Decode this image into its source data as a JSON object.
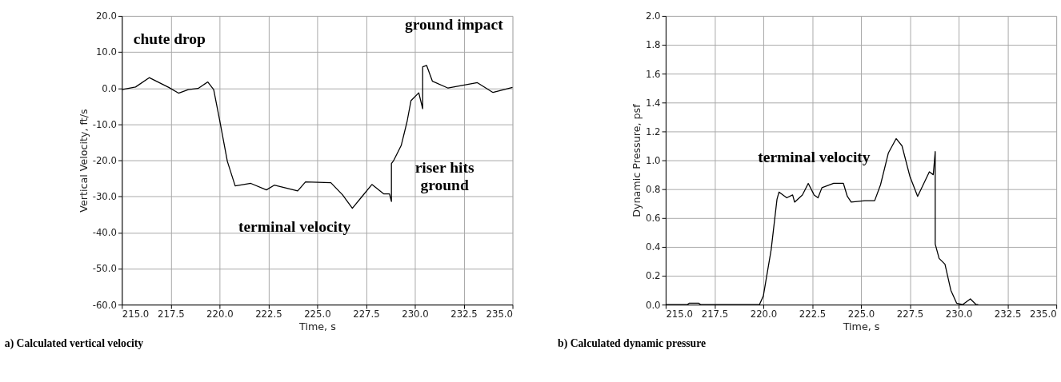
{
  "chart_data": [
    {
      "type": "line",
      "xlabel": "Time, s",
      "ylabel": "Vertical Velocity, ft/s",
      "grid": true,
      "xlim": [
        215,
        235
      ],
      "xticks": [
        {
          "value": 215,
          "label": "215.0"
        },
        {
          "value": 217.5,
          "label": "217.5"
        },
        {
          "value": 220,
          "label": "220.0"
        },
        {
          "value": 222.5,
          "label": "222.5"
        },
        {
          "value": 225,
          "label": "225.0"
        },
        {
          "value": 227.5,
          "label": "227.5"
        },
        {
          "value": 230,
          "label": "230.0"
        },
        {
          "value": 232.5,
          "label": "232.5"
        },
        {
          "value": 235,
          "label": "235.0"
        }
      ],
      "ylim": [
        -60,
        20
      ],
      "yticks": [
        {
          "value": -60,
          "label": "-60.0"
        },
        {
          "value": -50,
          "label": "-50.0"
        },
        {
          "value": -40,
          "label": "-40.0"
        },
        {
          "value": -30,
          "label": "-30.0"
        },
        {
          "value": -20,
          "label": "-20.0"
        },
        {
          "value": -10,
          "label": "-10.0"
        },
        {
          "value": 0,
          "label": "0.0"
        },
        {
          "value": 10,
          "label": "10.0"
        },
        {
          "value": 20,
          "label": "20.0"
        }
      ],
      "x": [
        215.0,
        215.7,
        216.4,
        217.4,
        217.9,
        218.4,
        218.9,
        219.4,
        219.7,
        220.0,
        220.4,
        220.5,
        220.8,
        221.6,
        222.4,
        222.8,
        224.0,
        224.4,
        225.7,
        226.3,
        226.8,
        227.3,
        227.8,
        228.4,
        228.7,
        228.8,
        228.8,
        228.9,
        229.3,
        229.6,
        229.8,
        230.2,
        230.4,
        230.4,
        230.6,
        230.9,
        231.7,
        233.2,
        234.0,
        235.0
      ],
      "series": [
        {
          "color": "#000000",
          "values": [
            -0.4,
            0.3,
            2.9,
            0.2,
            -1.4,
            -0.4,
            -0.1,
            1.7,
            -0.4,
            -8.7,
            -20.3,
            -22.0,
            -27.1,
            -26.4,
            -28.2,
            -26.9,
            -28.5,
            -26.0,
            -26.2,
            -29.6,
            -33.3,
            -30.0,
            -26.7,
            -29.3,
            -29.3,
            -31.4,
            -20.9,
            -20.2,
            -15.9,
            -9.3,
            -3.5,
            -1.3,
            -5.7,
            5.9,
            6.3,
            1.9,
            0.0,
            1.5,
            -1.2,
            0.2
          ]
        }
      ],
      "annotations": [
        "chute drop",
        "ground impact",
        "riser hits\nground",
        "terminal velocity",
        "a) Calculated vertical velocity"
      ]
    },
    {
      "type": "line",
      "xlabel": "Time, s",
      "ylabel": "Dynamic Pressure, psf",
      "grid": true,
      "xlim": [
        215,
        235
      ],
      "xticks": [
        {
          "value": 215,
          "label": "215.0"
        },
        {
          "value": 217.5,
          "label": "217.5"
        },
        {
          "value": 220,
          "label": "220.0"
        },
        {
          "value": 222.5,
          "label": "222.5"
        },
        {
          "value": 225,
          "label": "225.0"
        },
        {
          "value": 227.5,
          "label": "227.5"
        },
        {
          "value": 230,
          "label": "230.0"
        },
        {
          "value": 232.5,
          "label": "232.5"
        },
        {
          "value": 235,
          "label": "235.0"
        }
      ],
      "ylim": [
        0,
        2
      ],
      "yticks": [
        {
          "value": 0,
          "label": "0.0"
        },
        {
          "value": 0.2,
          "label": "0.2"
        },
        {
          "value": 0.4,
          "label": "0.4"
        },
        {
          "value": 0.6,
          "label": "0.6"
        },
        {
          "value": 0.8,
          "label": "0.8"
        },
        {
          "value": 1.0,
          "label": "1.0"
        },
        {
          "value": 1.2,
          "label": "1.2"
        },
        {
          "value": 1.4,
          "label": "1.4"
        },
        {
          "value": 1.6,
          "label": "1.6"
        },
        {
          "value": 1.8,
          "label": "1.8"
        },
        {
          "value": 2.0,
          "label": "2.0"
        }
      ],
      "x": [
        215.0,
        216.1,
        216.2,
        216.7,
        216.8,
        219.8,
        220.0,
        220.4,
        220.7,
        220.8,
        221.2,
        221.5,
        221.6,
        222.0,
        222.3,
        222.6,
        222.8,
        223.0,
        223.6,
        224.1,
        224.3,
        224.5,
        225.2,
        225.7,
        226.0,
        226.4,
        226.8,
        227.1,
        227.5,
        227.9,
        228.5,
        228.7,
        228.8,
        228.8,
        229.0,
        229.3,
        229.6,
        229.9,
        230.2,
        230.6,
        230.9,
        231.0
      ],
      "series": [
        {
          "color": "#000000",
          "values": [
            0,
            0,
            0.01,
            0.01,
            0,
            0,
            0.06,
            0.38,
            0.73,
            0.78,
            0.74,
            0.76,
            0.71,
            0.76,
            0.84,
            0.76,
            0.74,
            0.81,
            0.84,
            0.84,
            0.75,
            0.71,
            0.72,
            0.72,
            0.83,
            1.05,
            1.15,
            1.1,
            0.89,
            0.75,
            0.92,
            0.9,
            1.06,
            0.42,
            0.32,
            0.28,
            0.1,
            0.01,
            0,
            0.04,
            0,
            0
          ]
        }
      ],
      "annotations": [
        "terminal velocity",
        "b) Calculated dynamic pressure"
      ]
    }
  ]
}
